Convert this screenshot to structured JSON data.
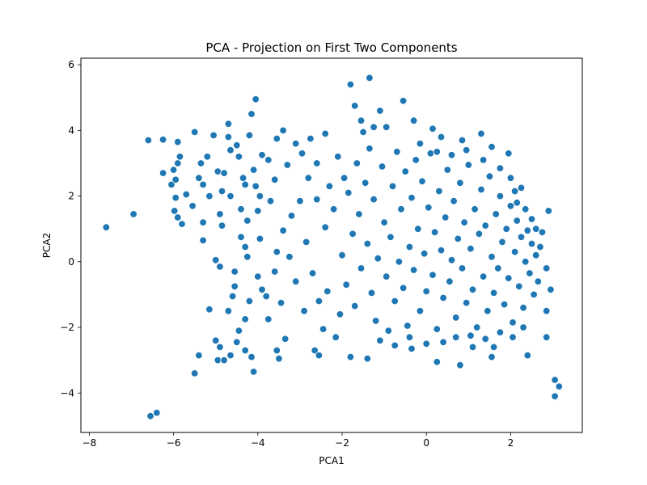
{
  "chart_data": {
    "type": "scatter",
    "title": "PCA - Projection on First Two Components",
    "xlabel": "PCA1",
    "ylabel": "PCA2",
    "xlim": [
      -8.2,
      3.7
    ],
    "ylim": [
      -5.2,
      6.2
    ],
    "xticks": [
      -8,
      -6,
      -4,
      -2,
      0,
      2
    ],
    "yticks": [
      -4,
      -2,
      0,
      2,
      4,
      6
    ],
    "xtick_labels": [
      "−8",
      "−6",
      "−4",
      "−2",
      "0",
      "2"
    ],
    "ytick_labels": [
      "−4",
      "−2",
      "0",
      "2",
      "4",
      "6"
    ],
    "grid": false,
    "point_color": "#1f77b4",
    "series": [
      {
        "values": [
          [
            -7.6,
            1.05
          ],
          [
            -6.95,
            1.45
          ],
          [
            -6.6,
            3.7
          ],
          [
            -6.25,
            3.72
          ],
          [
            -6.25,
            2.7
          ],
          [
            -6.05,
            2.35
          ],
          [
            -6.0,
            2.8
          ],
          [
            -5.95,
            2.5
          ],
          [
            -5.9,
            3.0
          ],
          [
            -5.85,
            3.2
          ],
          [
            -5.9,
            3.65
          ],
          [
            -5.98,
            1.55
          ],
          [
            -5.95,
            1.95
          ],
          [
            -5.9,
            1.35
          ],
          [
            -5.8,
            1.15
          ],
          [
            -5.7,
            2.05
          ],
          [
            -5.55,
            1.7
          ],
          [
            -5.5,
            3.95
          ],
          [
            -5.4,
            2.55
          ],
          [
            -5.35,
            3.0
          ],
          [
            -5.3,
            2.35
          ],
          [
            -5.3,
            1.2
          ],
          [
            -5.2,
            3.2
          ],
          [
            -5.15,
            2.0
          ],
          [
            -5.05,
            3.85
          ],
          [
            -5.3,
            0.65
          ],
          [
            -4.95,
            2.75
          ],
          [
            -4.85,
            2.15
          ],
          [
            -4.8,
            2.7
          ],
          [
            -4.9,
            1.45
          ],
          [
            -4.85,
            1.1
          ],
          [
            -4.7,
            4.2
          ],
          [
            -4.7,
            3.8
          ],
          [
            -4.65,
            3.4
          ],
          [
            -4.5,
            3.55
          ],
          [
            -4.45,
            3.2
          ],
          [
            -4.35,
            2.55
          ],
          [
            -4.3,
            2.35
          ],
          [
            -4.25,
            1.25
          ],
          [
            -4.3,
            0.45
          ],
          [
            -4.25,
            0.15
          ],
          [
            -4.15,
            4.5
          ],
          [
            -4.05,
            4.95
          ],
          [
            -4.2,
            3.85
          ],
          [
            -4.1,
            2.8
          ],
          [
            -4.05,
            2.3
          ],
          [
            -4.0,
            1.55
          ],
          [
            -3.95,
            0.7
          ],
          [
            -3.9,
            3.25
          ],
          [
            -3.75,
            3.1
          ],
          [
            -3.6,
            2.5
          ],
          [
            -3.55,
            3.75
          ],
          [
            -3.4,
            4.0
          ],
          [
            -3.3,
            2.95
          ],
          [
            -3.1,
            3.6
          ],
          [
            -2.95,
            3.3
          ],
          [
            -2.75,
            3.75
          ],
          [
            -2.6,
            3.0
          ],
          [
            -2.4,
            3.9
          ],
          [
            -2.3,
            2.3
          ],
          [
            -2.1,
            3.2
          ],
          [
            -1.95,
            2.55
          ],
          [
            -1.8,
            5.4
          ],
          [
            -1.7,
            4.75
          ],
          [
            -1.55,
            4.3
          ],
          [
            -1.5,
            3.95
          ],
          [
            -1.35,
            5.6
          ],
          [
            -1.25,
            4.1
          ],
          [
            -1.1,
            4.6
          ],
          [
            -0.95,
            4.1
          ],
          [
            -0.55,
            4.9
          ],
          [
            -0.3,
            4.3
          ],
          [
            0.15,
            4.05
          ],
          [
            0.35,
            3.8
          ],
          [
            0.85,
            3.7
          ],
          [
            1.3,
            3.9
          ],
          [
            1.55,
            3.5
          ],
          [
            1.95,
            3.3
          ],
          [
            -5.0,
            0.05
          ],
          [
            -4.9,
            -0.15
          ],
          [
            -5.15,
            -1.45
          ],
          [
            -5.0,
            -2.4
          ],
          [
            -4.9,
            -2.6
          ],
          [
            -4.95,
            -3.0
          ],
          [
            -4.8,
            -3.0
          ],
          [
            -5.4,
            -2.85
          ],
          [
            -5.5,
            -3.4
          ],
          [
            -4.65,
            -2.85
          ],
          [
            -4.5,
            -2.45
          ],
          [
            -4.45,
            -2.1
          ],
          [
            -4.3,
            -2.7
          ],
          [
            -4.15,
            -2.9
          ],
          [
            -4.1,
            -3.35
          ],
          [
            -4.3,
            -1.75
          ],
          [
            -4.6,
            -1.05
          ],
          [
            -4.7,
            -1.5
          ],
          [
            -3.75,
            -1.75
          ],
          [
            -3.55,
            -2.7
          ],
          [
            -3.5,
            -2.95
          ],
          [
            -3.35,
            -2.35
          ],
          [
            -2.65,
            -2.7
          ],
          [
            -2.55,
            -2.85
          ],
          [
            -1.8,
            -2.9
          ],
          [
            -1.4,
            -2.95
          ],
          [
            -0.35,
            -2.65
          ],
          [
            0.25,
            -3.05
          ],
          [
            0.8,
            -3.15
          ],
          [
            1.1,
            -2.6
          ],
          [
            1.6,
            -2.6
          ],
          [
            1.55,
            -2.9
          ],
          [
            2.4,
            -2.85
          ],
          [
            2.85,
            -2.3
          ],
          [
            2.85,
            -1.5
          ],
          [
            2.95,
            -0.85
          ],
          [
            2.85,
            -0.2
          ],
          [
            2.75,
            0.9
          ],
          [
            2.9,
            1.55
          ],
          [
            2.25,
            2.25
          ],
          [
            2.15,
            1.8
          ],
          [
            2.0,
            2.55
          ],
          [
            3.05,
            -3.6
          ],
          [
            3.05,
            -4.1
          ],
          [
            3.15,
            -3.8
          ],
          [
            -6.55,
            -4.7
          ],
          [
            -6.4,
            -4.6
          ],
          [
            -3.9,
            -0.85
          ],
          [
            -3.8,
            -1.05
          ],
          [
            -3.6,
            -0.3
          ],
          [
            -3.55,
            0.3
          ],
          [
            -3.4,
            0.95
          ],
          [
            -3.2,
            1.4
          ],
          [
            -3.0,
            1.85
          ],
          [
            -2.85,
            0.6
          ],
          [
            -2.7,
            -0.35
          ],
          [
            -2.55,
            -1.2
          ],
          [
            -2.4,
            1.05
          ],
          [
            -2.35,
            -0.9
          ],
          [
            -2.2,
            1.6
          ],
          [
            -2.05,
            -1.6
          ],
          [
            -2.0,
            0.2
          ],
          [
            -1.9,
            -0.7
          ],
          [
            -1.75,
            0.85
          ],
          [
            -1.7,
            -1.35
          ],
          [
            -1.6,
            1.45
          ],
          [
            -1.55,
            -0.2
          ],
          [
            -1.45,
            2.4
          ],
          [
            -1.4,
            0.55
          ],
          [
            -1.3,
            -0.95
          ],
          [
            -1.25,
            1.9
          ],
          [
            -1.2,
            -1.8
          ],
          [
            -1.15,
            0.1
          ],
          [
            -1.05,
            2.9
          ],
          [
            -1.0,
            1.2
          ],
          [
            -0.95,
            -0.45
          ],
          [
            -0.9,
            -2.1
          ],
          [
            -0.85,
            0.75
          ],
          [
            -0.8,
            2.3
          ],
          [
            -0.75,
            -1.2
          ],
          [
            -0.7,
            3.35
          ],
          [
            -0.65,
            0.0
          ],
          [
            -0.6,
            1.6
          ],
          [
            -0.55,
            -0.8
          ],
          [
            -0.5,
            2.75
          ],
          [
            -0.45,
            -1.95
          ],
          [
            -0.4,
            0.45
          ],
          [
            -0.35,
            1.95
          ],
          [
            -0.3,
            -0.25
          ],
          [
            -0.25,
            3.1
          ],
          [
            -0.2,
            1.0
          ],
          [
            -0.15,
            -1.5
          ],
          [
            -0.1,
            2.45
          ],
          [
            -0.05,
            0.25
          ],
          [
            0.0,
            -0.9
          ],
          [
            0.05,
            1.65
          ],
          [
            0.1,
            3.3
          ],
          [
            0.15,
            -0.4
          ],
          [
            0.2,
            0.9
          ],
          [
            0.25,
            -2.05
          ],
          [
            0.3,
            2.15
          ],
          [
            0.35,
            0.35
          ],
          [
            0.4,
            -1.1
          ],
          [
            0.45,
            1.35
          ],
          [
            0.5,
            2.8
          ],
          [
            0.55,
            -0.6
          ],
          [
            0.6,
            0.05
          ],
          [
            0.65,
            1.85
          ],
          [
            0.7,
            -1.7
          ],
          [
            0.75,
            0.7
          ],
          [
            0.8,
            2.4
          ],
          [
            0.85,
            -0.2
          ],
          [
            0.9,
            1.2
          ],
          [
            0.95,
            -1.25
          ],
          [
            1.0,
            2.95
          ],
          [
            1.05,
            0.4
          ],
          [
            1.1,
            -0.85
          ],
          [
            1.15,
            1.6
          ],
          [
            1.2,
            -2.0
          ],
          [
            1.25,
            0.85
          ],
          [
            1.3,
            2.2
          ],
          [
            1.35,
            -0.45
          ],
          [
            1.4,
            1.1
          ],
          [
            1.45,
            -1.5
          ],
          [
            1.5,
            2.6
          ],
          [
            1.55,
            0.15
          ],
          [
            1.6,
            -0.95
          ],
          [
            1.65,
            1.45
          ],
          [
            1.7,
            -0.2
          ],
          [
            1.75,
            2.0
          ],
          [
            1.8,
            0.6
          ],
          [
            1.85,
            -1.3
          ],
          [
            1.9,
            1.0
          ],
          [
            1.95,
            -0.5
          ],
          [
            2.0,
            1.7
          ],
          [
            2.05,
            -1.85
          ],
          [
            2.1,
            0.3
          ],
          [
            2.15,
            1.25
          ],
          [
            2.2,
            -0.75
          ],
          [
            2.25,
            0.75
          ],
          [
            2.3,
            -1.4
          ],
          [
            2.35,
            0.0
          ],
          [
            2.4,
            0.95
          ],
          [
            2.45,
            -0.35
          ],
          [
            2.5,
            0.55
          ],
          [
            2.55,
            -1.0
          ],
          [
            2.6,
            0.2
          ],
          [
            2.65,
            -0.6
          ],
          [
            2.7,
            0.45
          ],
          [
            -2.9,
            -1.5
          ],
          [
            -3.1,
            -0.6
          ],
          [
            -3.25,
            0.15
          ],
          [
            -3.45,
            -1.25
          ],
          [
            -2.6,
            1.9
          ],
          [
            -2.8,
            2.55
          ],
          [
            -2.45,
            -2.05
          ],
          [
            -2.15,
            -2.3
          ],
          [
            -1.85,
            2.1
          ],
          [
            -1.65,
            3.0
          ],
          [
            -1.35,
            3.45
          ],
          [
            -1.1,
            -2.4
          ],
          [
            -0.75,
            -2.55
          ],
          [
            -0.4,
            -2.3
          ],
          [
            0.0,
            -2.5
          ],
          [
            0.4,
            -2.45
          ],
          [
            0.7,
            -2.3
          ],
          [
            1.05,
            -2.25
          ],
          [
            1.4,
            -2.35
          ],
          [
            1.75,
            -2.15
          ],
          [
            2.05,
            -2.3
          ],
          [
            2.3,
            -2.0
          ],
          [
            -0.15,
            3.6
          ],
          [
            0.25,
            3.35
          ],
          [
            0.6,
            3.25
          ],
          [
            0.95,
            3.4
          ],
          [
            1.35,
            3.1
          ],
          [
            1.75,
            2.85
          ],
          [
            2.1,
            2.15
          ],
          [
            2.35,
            1.6
          ],
          [
            2.5,
            1.3
          ],
          [
            2.6,
            1.0
          ],
          [
            -4.55,
            -0.3
          ],
          [
            -4.4,
            0.75
          ],
          [
            -4.2,
            -1.2
          ],
          [
            -4.0,
            -0.45
          ],
          [
            -3.7,
            1.85
          ],
          [
            -3.95,
            2.0
          ],
          [
            -4.4,
            1.6
          ],
          [
            -4.65,
            2.0
          ],
          [
            -4.55,
            -0.75
          ]
        ]
      }
    ]
  }
}
